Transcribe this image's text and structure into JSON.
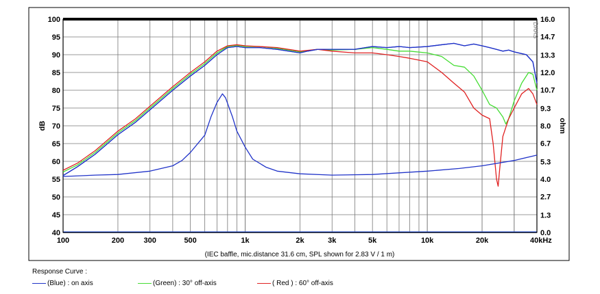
{
  "chart_data": {
    "type": "line",
    "x_scale": "log",
    "x_tick_labels": [
      "100",
      "200",
      "300",
      "500",
      "1k",
      "2k",
      "3k",
      "5k",
      "10k",
      "20k",
      "40kHz"
    ],
    "x_tick_values": [
      100,
      200,
      300,
      500,
      1000,
      2000,
      3000,
      5000,
      10000,
      20000,
      40000
    ],
    "xlim": [
      100,
      40000
    ],
    "left_axis": {
      "label": "dB",
      "ylim": [
        40,
        100
      ],
      "ticks": [
        "40",
        "45",
        "50",
        "55",
        "60",
        "65",
        "70",
        "75",
        "80",
        "85",
        "90",
        "95",
        "100"
      ]
    },
    "right_axis": {
      "label": "ohm",
      "ylim": [
        0,
        16
      ],
      "ticks": [
        "0.0",
        "1.3",
        "2.7",
        "4.0",
        "5.3",
        "6.7",
        "8.0",
        "9.3",
        "10.7",
        "12.0",
        "13.3",
        "14.7",
        "16.0"
      ]
    },
    "grid": true,
    "caption": "(IEC baffle, mic.distance 31.6 cm, SPL shown for 2.83 V / 1 m)",
    "watermark": "DAAS",
    "series": [
      {
        "name": "(Blue)  : on axis",
        "axis": "left",
        "color": "#1f32c8",
        "points": [
          [
            100,
            56
          ],
          [
            120,
            58.5
          ],
          [
            150,
            62
          ],
          [
            200,
            67.5
          ],
          [
            250,
            71
          ],
          [
            300,
            74.5
          ],
          [
            400,
            80
          ],
          [
            500,
            84
          ],
          [
            600,
            87
          ],
          [
            700,
            90
          ],
          [
            800,
            92
          ],
          [
            900,
            92.3
          ],
          [
            1000,
            92
          ],
          [
            1200,
            92
          ],
          [
            1500,
            91.5
          ],
          [
            2000,
            90.5
          ],
          [
            2200,
            91
          ],
          [
            2500,
            91.5
          ],
          [
            3000,
            91.5
          ],
          [
            4000,
            91.5
          ],
          [
            5000,
            92.3
          ],
          [
            6000,
            92
          ],
          [
            7000,
            92.3
          ],
          [
            8000,
            92
          ],
          [
            10000,
            92.3
          ],
          [
            12000,
            92.8
          ],
          [
            14000,
            93.2
          ],
          [
            16000,
            92.5
          ],
          [
            18000,
            93
          ],
          [
            20000,
            92.5
          ],
          [
            22000,
            92
          ],
          [
            24000,
            91.5
          ],
          [
            26000,
            91
          ],
          [
            28000,
            91.3
          ],
          [
            30000,
            90.8
          ],
          [
            35000,
            90
          ],
          [
            38000,
            88
          ],
          [
            40000,
            82
          ]
        ]
      },
      {
        "name": "(Green) : 30° off-axis",
        "axis": "left",
        "color": "#44dd33",
        "points": [
          [
            100,
            57
          ],
          [
            120,
            59
          ],
          [
            150,
            62.5
          ],
          [
            200,
            68
          ],
          [
            250,
            71.5
          ],
          [
            300,
            75
          ],
          [
            400,
            80.5
          ],
          [
            500,
            84.5
          ],
          [
            600,
            87.5
          ],
          [
            700,
            90.5
          ],
          [
            800,
            92.3
          ],
          [
            900,
            92.6
          ],
          [
            1000,
            92.3
          ],
          [
            1200,
            92.3
          ],
          [
            1500,
            91.8
          ],
          [
            2000,
            90.8
          ],
          [
            2500,
            91.5
          ],
          [
            3000,
            91.3
          ],
          [
            4000,
            91.5
          ],
          [
            5000,
            92
          ],
          [
            6000,
            91.5
          ],
          [
            7000,
            91
          ],
          [
            8000,
            91
          ],
          [
            10000,
            90.5
          ],
          [
            12000,
            89.5
          ],
          [
            14000,
            87
          ],
          [
            16000,
            86.5
          ],
          [
            18000,
            84
          ],
          [
            20000,
            80
          ],
          [
            22000,
            76
          ],
          [
            24000,
            75
          ],
          [
            26000,
            72.5
          ],
          [
            27000,
            70.5
          ],
          [
            28000,
            72
          ],
          [
            30000,
            77
          ],
          [
            33000,
            82
          ],
          [
            36000,
            85
          ],
          [
            38000,
            84.5
          ],
          [
            40000,
            80
          ]
        ]
      },
      {
        "name": "( Red ) : 60° off-axis",
        "axis": "left",
        "color": "#e02020",
        "points": [
          [
            100,
            57.5
          ],
          [
            120,
            59.5
          ],
          [
            150,
            63
          ],
          [
            200,
            68.5
          ],
          [
            250,
            72
          ],
          [
            300,
            75.5
          ],
          [
            400,
            81
          ],
          [
            500,
            85
          ],
          [
            600,
            88
          ],
          [
            700,
            91
          ],
          [
            800,
            92.5
          ],
          [
            900,
            92.8
          ],
          [
            1000,
            92.5
          ],
          [
            1200,
            92.3
          ],
          [
            1500,
            92
          ],
          [
            2000,
            91
          ],
          [
            2500,
            91.5
          ],
          [
            3000,
            91
          ],
          [
            4000,
            90.5
          ],
          [
            5000,
            90.5
          ],
          [
            6000,
            90
          ],
          [
            7000,
            89.5
          ],
          [
            8000,
            89
          ],
          [
            10000,
            88
          ],
          [
            12000,
            85
          ],
          [
            14000,
            82
          ],
          [
            16000,
            79.5
          ],
          [
            18000,
            75
          ],
          [
            20000,
            73
          ],
          [
            22000,
            72
          ],
          [
            23000,
            65
          ],
          [
            24000,
            55
          ],
          [
            24500,
            53
          ],
          [
            25000,
            58
          ],
          [
            26000,
            67
          ],
          [
            28000,
            72
          ],
          [
            30000,
            75
          ],
          [
            33000,
            79
          ],
          [
            36000,
            80.5
          ],
          [
            38000,
            79
          ],
          [
            40000,
            76
          ]
        ]
      },
      {
        "name": "impedance",
        "axis": "right",
        "color": "#1f32c8",
        "points": [
          [
            100,
            4.2
          ],
          [
            150,
            4.3
          ],
          [
            200,
            4.35
          ],
          [
            300,
            4.6
          ],
          [
            400,
            5.0
          ],
          [
            450,
            5.4
          ],
          [
            500,
            6.0
          ],
          [
            600,
            7.3
          ],
          [
            650,
            8.7
          ],
          [
            700,
            9.75
          ],
          [
            750,
            10.4
          ],
          [
            780,
            10.1
          ],
          [
            850,
            8.7
          ],
          [
            900,
            7.6
          ],
          [
            1000,
            6.4
          ],
          [
            1100,
            5.5
          ],
          [
            1300,
            4.9
          ],
          [
            1500,
            4.6
          ],
          [
            2000,
            4.4
          ],
          [
            3000,
            4.3
          ],
          [
            5000,
            4.35
          ],
          [
            10000,
            4.6
          ],
          [
            15000,
            4.8
          ],
          [
            20000,
            5.0
          ],
          [
            30000,
            5.4
          ],
          [
            40000,
            5.8
          ]
        ]
      }
    ]
  },
  "legend": {
    "title": "Response Curve :",
    "items": [
      {
        "label": "(Blue)  : on axis",
        "color": "#1f32c8"
      },
      {
        "label": "(Green) : 30° off-axis",
        "color": "#44dd33"
      },
      {
        "label": "( Red ) : 60° off-axis",
        "color": "#e02020"
      }
    ]
  }
}
